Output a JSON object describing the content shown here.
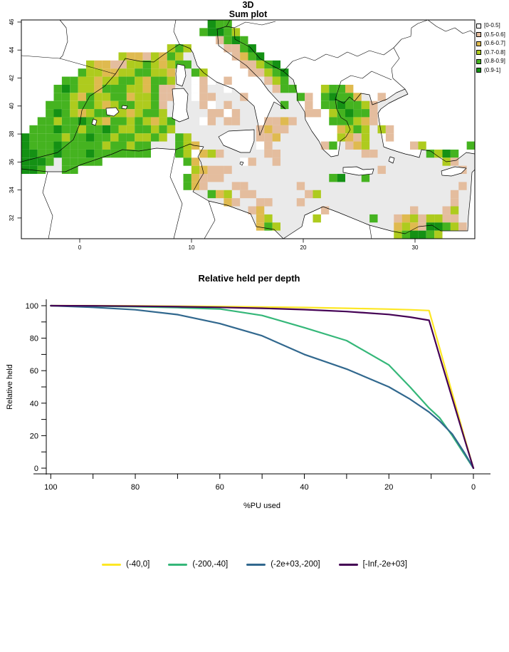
{
  "map_figure": {
    "title_line1": "3D",
    "title_line2": "Sum plot",
    "sea_color": "#EAEAEA",
    "x_axis_ticks": [
      0,
      10,
      20,
      30
    ],
    "y_axis_ticks": [
      46,
      44,
      42,
      40,
      38,
      36,
      34,
      32
    ]
  },
  "chart_data": [
    {
      "type": "heatmap",
      "title": "3D Sum plot",
      "x_ticks": [
        0,
        10,
        20,
        30
      ],
      "y_ticks": [
        46,
        44,
        42,
        40,
        38,
        36,
        34,
        32
      ],
      "legend_position": "right",
      "classes": [
        {
          "key": "w",
          "label": "[0-0.5]",
          "color": "#FFFFFF"
        },
        {
          "key": "s",
          "label": "(0.5-0.6]",
          "color": "#E4BD9E"
        },
        {
          "key": "o",
          "label": "(0.6-0.7]",
          "color": "#DFBA4F"
        },
        {
          "key": "y",
          "label": "(0.7-0.8]",
          "color": "#AECB1E"
        },
        {
          "key": "g",
          "label": "(0.8-0.9]",
          "color": "#45B320"
        },
        {
          "key": "d",
          "label": "(0.9-1]",
          "color": "#149114"
        }
      ],
      "grid_cols": 56,
      "grid_rows": 27,
      "grid": [
        ".......................dgg..............................",
        "......................gddgy.............................",
        "........................sgdg............................",
        "..................ygy....ssgd...........................",
        "............yoosyogy......sogd..........................",
        "........yoossyygyoygg......ssygd........................",
        ".......gyyooyyggyyo..gy.....ssygd.......................",
        ".....ggyyoyyggyoggy..wsw.s....syg.......................",
        "....gdgyyogggyyogss..ws..w.....sgg...yggo...............",
        "....ggyogyyggoyygss..wss...s......gs.gdggo..s...........",
        "...gggyggyoyggyygs....sw.s......g..s.ggdggys............",
        "...gdgyoyggyyoyggy.....ssws........ss.ygdggs............",
        "..ggyggdgyoggygyoyg...ws.ss...ssos....gggyos............",
        ".gggdggyggdgyyggygy..........soss......oygy.ys..........",
        "dggggyggdggyggyygy.gy........sso.......yosy..s..........",
        "dgggdgggggyggygg...gyo.......ws......sg.soy.....sy.....g",
        "ddggdgggdggggggg...gy.oys.....ss..........ss......gydg..",
        "dddg.ggggg..........go.....ws..s....................ys..",
        "ddg..gg..............yosss..................s.........s.",
        "....................gosss.............gd..g.............",
        "....................gos...ss......s...................s.",
        ".......................goy.ss......sy................s..",
        ".........................os..ss...s..................s..",
        "............................so.......s..........s...sy..",
        ".............................oy.....y......g..soysyyss..",
        ".............................ogy..............oyosddgys.",
        "..............................................ygddgy...."
      ]
    },
    {
      "type": "line",
      "title": "Relative held per depth",
      "xlabel": "%PU used",
      "ylabel": "Relative held",
      "xlim": [
        100,
        0
      ],
      "ylim": [
        0,
        100
      ],
      "x_reversed": true,
      "grid": false,
      "legend_position": "bottom",
      "x_tick_labels": [
        100,
        80,
        60,
        40,
        20,
        0
      ],
      "y_tick_labels": [
        0,
        20,
        40,
        60,
        80,
        100
      ],
      "x": [
        100,
        90,
        80,
        70,
        60,
        50,
        40,
        30,
        20,
        15,
        10.5,
        8,
        5,
        2,
        0
      ],
      "series": [
        {
          "name": "(-40,0]",
          "color": "#FDE725",
          "values": [
            100,
            100,
            99.9,
            99.7,
            99.5,
            99.2,
            98.9,
            98.4,
            97.9,
            97.5,
            97,
            74,
            46,
            18,
            0
          ]
        },
        {
          "name": "(-200,-40]",
          "color": "#35B779",
          "values": [
            100,
            99.8,
            99.4,
            98.8,
            98,
            94,
            86.5,
            78.5,
            63.5,
            50,
            37,
            31,
            20,
            8,
            0
          ]
        },
        {
          "name": "(-2e+03,-200]",
          "color": "#31688E",
          "values": [
            100,
            99,
            97.5,
            94.5,
            89,
            81.5,
            70,
            61,
            50,
            42.5,
            34.5,
            29,
            21,
            9,
            0
          ]
        },
        {
          "name": "[-Inf,-2e+03]",
          "color": "#440154",
          "values": [
            100,
            99.9,
            99.7,
            99.4,
            99,
            98.4,
            97.6,
            96.4,
            94.6,
            93,
            91,
            69,
            43,
            17,
            0
          ]
        }
      ]
    }
  ]
}
